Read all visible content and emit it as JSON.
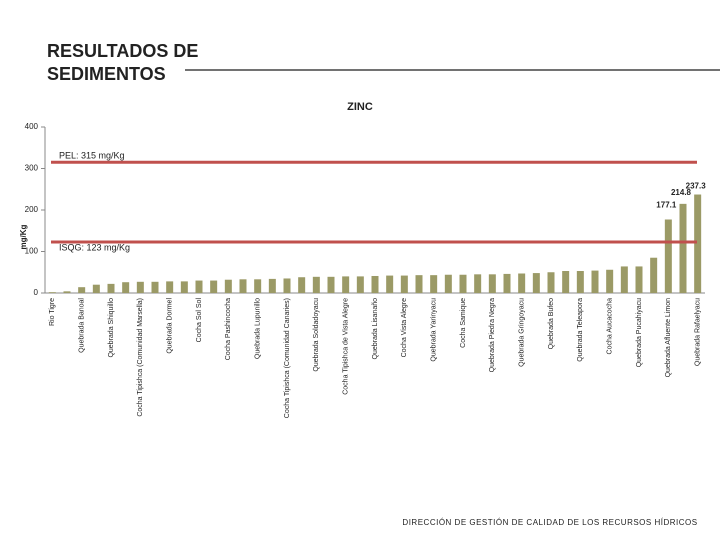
{
  "slide": {
    "title_lines": [
      "RESULTADOS DE",
      "SEDIMENTOS"
    ],
    "footer": "DIRECCIÓN DE GESTIÓN DE CALIDAD DE LOS RECURSOS HÍDRICOS"
  },
  "chart_data": {
    "type": "bar",
    "title": "ZINC",
    "y_label": "mg/Kg",
    "color": "#9b9a66",
    "categories": [
      "Rio Tigre",
      null,
      "Quebrada Banoal",
      null,
      "Quebrada Shiquillo",
      null,
      "Cocha Tipishca (Comunidad Marsella)",
      null,
      "Quebrada Dormel",
      null,
      "Cocha Sol Sol",
      null,
      "Cocha Pashincocha",
      null,
      "Quebrada Lupunillo",
      null,
      "Cocha Tipishca (Comunidad Canaries)",
      null,
      "Quebrada Soldadoyacu",
      null,
      "Cocha Tipishca de Vista Alegre",
      null,
      "Quebrada Lisanaño",
      null,
      "Cocha Vista Alegre",
      null,
      "Quebrada Yarinyacu",
      null,
      "Cocha Samique",
      null,
      "Quebrada Piedra Negra",
      null,
      "Quebrada Gringoyacu",
      null,
      "Quebrada Bufeo",
      null,
      "Quebrada Teleapora",
      null,
      "Cocha Aucacocha",
      null,
      "Quebrada Pucahiyacu",
      null,
      "Quebrada Afluente Limon",
      null,
      "Quebrada Rafaelyacu"
    ],
    "values": [
      2,
      4,
      14,
      20,
      22,
      26,
      27,
      27,
      28,
      28,
      30,
      30,
      32,
      33,
      33,
      34,
      35,
      38,
      39,
      39,
      40,
      40,
      41,
      42,
      42,
      43,
      43,
      44,
      44,
      45,
      45,
      46,
      47,
      48,
      50,
      53,
      53,
      54,
      56,
      64,
      64,
      85,
      177.1,
      214.8,
      237.3
    ],
    "value_labels": [
      null,
      null,
      null,
      null,
      null,
      null,
      null,
      null,
      null,
      null,
      null,
      null,
      null,
      null,
      null,
      null,
      null,
      null,
      null,
      null,
      null,
      null,
      null,
      null,
      null,
      null,
      null,
      null,
      null,
      null,
      null,
      null,
      null,
      null,
      null,
      null,
      null,
      null,
      null,
      null,
      null,
      null,
      "177.1",
      "214.8",
      "237.3"
    ],
    "ylim": [
      0,
      400
    ],
    "yticks": [
      0,
      100,
      200,
      300,
      400
    ],
    "reference_lines": [
      {
        "value": 315,
        "label": "PEL: 315 mg/Kg",
        "color": "#c0504d"
      },
      {
        "value": 123,
        "label": "ISQG: 123 mg/Kg",
        "color": "#c0504d"
      }
    ]
  }
}
